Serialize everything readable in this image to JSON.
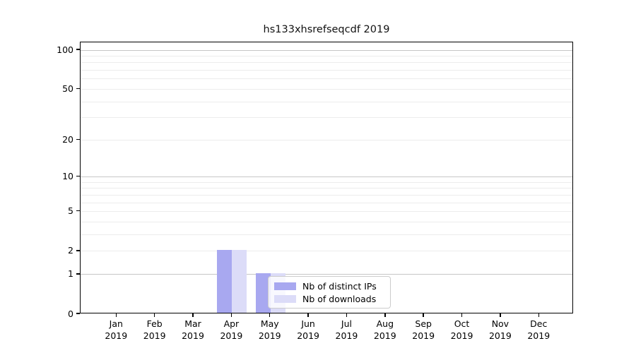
{
  "chart_data": {
    "type": "bar",
    "title": "hs133xhsrefseqcdf 2019",
    "categories": [
      "Jan 2019",
      "Feb 2019",
      "Mar 2019",
      "Apr 2019",
      "May 2019",
      "Jun 2019",
      "Jul 2019",
      "Aug 2019",
      "Sep 2019",
      "Oct 2019",
      "Nov 2019",
      "Dec 2019"
    ],
    "series": [
      {
        "name": "Nb of distinct IPs",
        "color": "#a8a8f0",
        "values": [
          0,
          0,
          0,
          2,
          1,
          0,
          0,
          0,
          0,
          0,
          0,
          0
        ]
      },
      {
        "name": "Nb of downloads",
        "color": "#dcdcf8",
        "values": [
          0,
          0,
          0,
          2,
          1,
          0,
          0,
          0,
          0,
          0,
          0,
          0
        ]
      }
    ],
    "xlabel": "",
    "ylabel": "",
    "yscale": "log1p",
    "ylim": [
      0,
      115
    ],
    "y_ticks": [
      0,
      1,
      2,
      5,
      10,
      20,
      50,
      100
    ],
    "y_gridlines_minor": [
      2,
      3,
      4,
      5,
      6,
      7,
      8,
      9,
      20,
      30,
      40,
      50,
      60,
      70,
      80,
      90
    ],
    "y_gridlines_major": [
      1,
      10,
      100
    ],
    "grid": "horizontal",
    "legend_position": "inside-lower-center"
  },
  "colors": {
    "bar_distinct_ips": "#a8a8f0",
    "bar_downloads": "#dcdcf8",
    "gridline_major": "#c6c6c6",
    "gridline_minor": "#ececec",
    "axis_frame": "#000000",
    "legend_border": "#cccccc"
  }
}
